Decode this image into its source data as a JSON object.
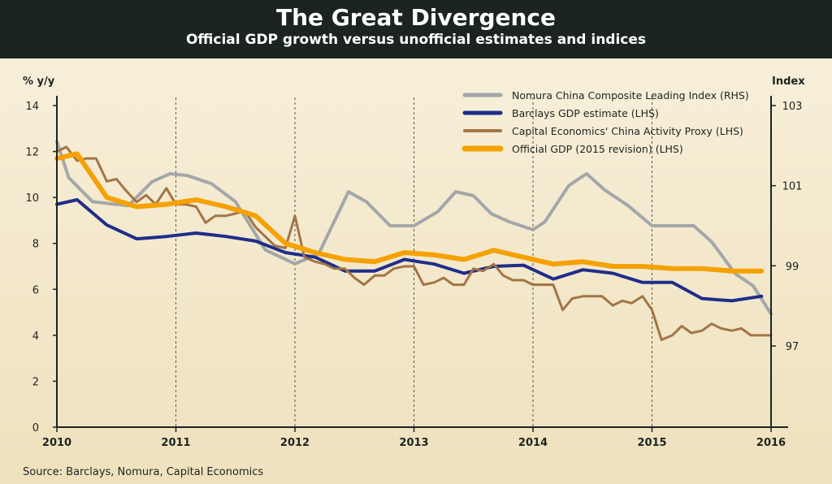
{
  "header": {
    "title": "The Great Divergence",
    "subtitle": "Official GDP growth versus unofficial estimates and indices"
  },
  "source": "Source: Barclays, Nomura, Capital Economics",
  "colors": {
    "header_bg": "#1c2422",
    "nomura": "#a3a7a9",
    "barclays": "#1f2d8a",
    "capital": "#a27546",
    "official": "#f5a100"
  },
  "chart_data": {
    "type": "line",
    "y_left": {
      "label": "% y/y",
      "range": [
        0,
        14
      ],
      "ticks": [
        "0",
        "2",
        "4",
        "6",
        "8",
        "10",
        "12",
        "14"
      ]
    },
    "y_right": {
      "label": "Index",
      "range": [
        95,
        103
      ],
      "ticks": [
        "97",
        "99",
        "101",
        "103"
      ]
    },
    "x_axis": {
      "range": [
        2010,
        2016
      ],
      "ticks": [
        "2010",
        "2011",
        "2012",
        "2013",
        "2014",
        "2015",
        "2016"
      ]
    },
    "gridlines": "vertical dashed at years 2011-2015",
    "legend_position": "top-right",
    "series": [
      {
        "name": "Nomura China Composite Leading Index (RHS)",
        "axis": "right",
        "points": [
          [
            2010,
            102.1
          ],
          [
            2010.1,
            101.2
          ],
          [
            2010.3,
            100.6
          ],
          [
            2010.6,
            100.5
          ],
          [
            2010.8,
            101.1
          ],
          [
            2010.95,
            101.3
          ],
          [
            2011.1,
            101.25
          ],
          [
            2011.3,
            101.05
          ],
          [
            2011.5,
            100.6
          ],
          [
            2011.75,
            99.4
          ],
          [
            2012.0,
            99.05
          ],
          [
            2012.2,
            99.3
          ],
          [
            2012.45,
            100.85
          ],
          [
            2012.6,
            100.6
          ],
          [
            2012.8,
            100.0
          ],
          [
            2013.0,
            100.0
          ],
          [
            2013.2,
            100.35
          ],
          [
            2013.35,
            100.85
          ],
          [
            2013.5,
            100.75
          ],
          [
            2013.65,
            100.3
          ],
          [
            2013.8,
            100.1
          ],
          [
            2014.0,
            99.9
          ],
          [
            2014.1,
            100.1
          ],
          [
            2014.3,
            101.0
          ],
          [
            2014.45,
            101.3
          ],
          [
            2014.6,
            100.9
          ],
          [
            2014.8,
            100.5
          ],
          [
            2015.0,
            100.0
          ],
          [
            2015.2,
            100.0
          ],
          [
            2015.35,
            100.0
          ],
          [
            2015.5,
            99.6
          ],
          [
            2015.7,
            98.8
          ],
          [
            2015.85,
            98.5
          ],
          [
            2016.0,
            97.8
          ]
        ]
      },
      {
        "name": "Barclays GDP estimate (LHS)",
        "axis": "left",
        "points": [
          [
            2010,
            9.7
          ],
          [
            2010.17,
            9.9
          ],
          [
            2010.42,
            8.8
          ],
          [
            2010.67,
            8.2
          ],
          [
            2010.92,
            8.3
          ],
          [
            2011.17,
            8.45
          ],
          [
            2011.42,
            8.3
          ],
          [
            2011.67,
            8.1
          ],
          [
            2011.92,
            7.6
          ],
          [
            2012.17,
            7.4
          ],
          [
            2012.42,
            6.8
          ],
          [
            2012.67,
            6.8
          ],
          [
            2012.92,
            7.3
          ],
          [
            2013.17,
            7.1
          ],
          [
            2013.42,
            6.7
          ],
          [
            2013.67,
            7.0
          ],
          [
            2013.92,
            7.05
          ],
          [
            2014.17,
            6.45
          ],
          [
            2014.42,
            6.85
          ],
          [
            2014.67,
            6.7
          ],
          [
            2014.92,
            6.3
          ],
          [
            2015.17,
            6.3
          ],
          [
            2015.42,
            5.6
          ],
          [
            2015.67,
            5.5
          ],
          [
            2015.92,
            5.7
          ]
        ]
      },
      {
        "name": "Capital Economics' China Activity Proxy (LHS)",
        "axis": "left",
        "points": [
          [
            2010,
            12.0
          ],
          [
            2010.08,
            12.2
          ],
          [
            2010.17,
            11.6
          ],
          [
            2010.25,
            11.7
          ],
          [
            2010.33,
            11.7
          ],
          [
            2010.42,
            10.7
          ],
          [
            2010.5,
            10.8
          ],
          [
            2010.58,
            10.3
          ],
          [
            2010.67,
            9.8
          ],
          [
            2010.75,
            10.1
          ],
          [
            2010.83,
            9.7
          ],
          [
            2010.92,
            10.4
          ],
          [
            2011,
            9.7
          ],
          [
            2011.08,
            9.7
          ],
          [
            2011.17,
            9.6
          ],
          [
            2011.25,
            8.9
          ],
          [
            2011.33,
            9.2
          ],
          [
            2011.42,
            9.2
          ],
          [
            2011.5,
            9.3
          ],
          [
            2011.58,
            9.4
          ],
          [
            2011.67,
            8.7
          ],
          [
            2011.75,
            8.3
          ],
          [
            2011.83,
            7.9
          ],
          [
            2011.92,
            7.8
          ],
          [
            2012,
            9.2
          ],
          [
            2012.08,
            7.4
          ],
          [
            2012.17,
            7.2
          ],
          [
            2012.25,
            7.1
          ],
          [
            2012.33,
            6.9
          ],
          [
            2012.42,
            6.9
          ],
          [
            2012.5,
            6.5
          ],
          [
            2012.58,
            6.2
          ],
          [
            2012.67,
            6.6
          ],
          [
            2012.75,
            6.6
          ],
          [
            2012.83,
            6.9
          ],
          [
            2012.92,
            7.0
          ],
          [
            2013,
            7.0
          ],
          [
            2013.08,
            6.2
          ],
          [
            2013.17,
            6.3
          ],
          [
            2013.25,
            6.5
          ],
          [
            2013.33,
            6.2
          ],
          [
            2013.42,
            6.2
          ],
          [
            2013.5,
            6.9
          ],
          [
            2013.58,
            6.8
          ],
          [
            2013.67,
            7.1
          ],
          [
            2013.75,
            6.6
          ],
          [
            2013.83,
            6.4
          ],
          [
            2013.92,
            6.4
          ],
          [
            2014,
            6.2
          ],
          [
            2014.08,
            6.2
          ],
          [
            2014.17,
            6.2
          ],
          [
            2014.25,
            5.1
          ],
          [
            2014.33,
            5.6
          ],
          [
            2014.42,
            5.7
          ],
          [
            2014.5,
            5.7
          ],
          [
            2014.58,
            5.7
          ],
          [
            2014.67,
            5.3
          ],
          [
            2014.75,
            5.5
          ],
          [
            2014.83,
            5.4
          ],
          [
            2014.92,
            5.7
          ],
          [
            2015,
            5.1
          ],
          [
            2015.08,
            3.8
          ],
          [
            2015.17,
            4.0
          ],
          [
            2015.25,
            4.4
          ],
          [
            2015.33,
            4.1
          ],
          [
            2015.42,
            4.2
          ],
          [
            2015.5,
            4.5
          ],
          [
            2015.58,
            4.3
          ],
          [
            2015.67,
            4.2
          ],
          [
            2015.75,
            4.3
          ],
          [
            2015.83,
            4.0
          ],
          [
            2015.92,
            4.0
          ],
          [
            2016,
            4.0
          ]
        ]
      },
      {
        "name": "Official GDP (2015 revision) (LHS)",
        "axis": "left",
        "points": [
          [
            2010,
            11.7
          ],
          [
            2010.17,
            11.9
          ],
          [
            2010.42,
            10.0
          ],
          [
            2010.67,
            9.6
          ],
          [
            2010.92,
            9.7
          ],
          [
            2011.17,
            9.9
          ],
          [
            2011.42,
            9.6
          ],
          [
            2011.67,
            9.2
          ],
          [
            2011.92,
            8.0
          ],
          [
            2012.17,
            7.6
          ],
          [
            2012.42,
            7.3
          ],
          [
            2012.67,
            7.2
          ],
          [
            2012.92,
            7.6
          ],
          [
            2013.17,
            7.5
          ],
          [
            2013.42,
            7.3
          ],
          [
            2013.67,
            7.7
          ],
          [
            2013.92,
            7.4
          ],
          [
            2014.17,
            7.1
          ],
          [
            2014.42,
            7.2
          ],
          [
            2014.67,
            7.0
          ],
          [
            2014.92,
            7.0
          ],
          [
            2015.17,
            6.9
          ],
          [
            2015.42,
            6.9
          ],
          [
            2015.67,
            6.8
          ],
          [
            2015.92,
            6.8
          ]
        ]
      }
    ]
  }
}
